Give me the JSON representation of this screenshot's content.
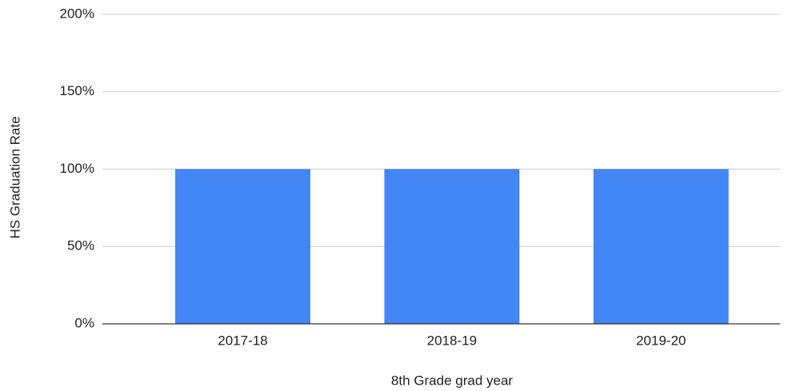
{
  "chart_data": {
    "type": "bar",
    "categories": [
      "2017-18",
      "2018-19",
      "2019-20"
    ],
    "values": [
      100,
      100,
      100
    ],
    "color": "#4285f4",
    "xlabel": "8th Grade grad year",
    "ylabel": "HS Graduation Rate",
    "ylim": [
      0,
      200
    ],
    "yticks": [
      {
        "value": 0,
        "label": "0%"
      },
      {
        "value": 50,
        "label": "50%"
      },
      {
        "value": 100,
        "label": "100%"
      },
      {
        "value": 150,
        "label": "150%"
      },
      {
        "value": 200,
        "label": "200%"
      }
    ],
    "grid": true
  }
}
